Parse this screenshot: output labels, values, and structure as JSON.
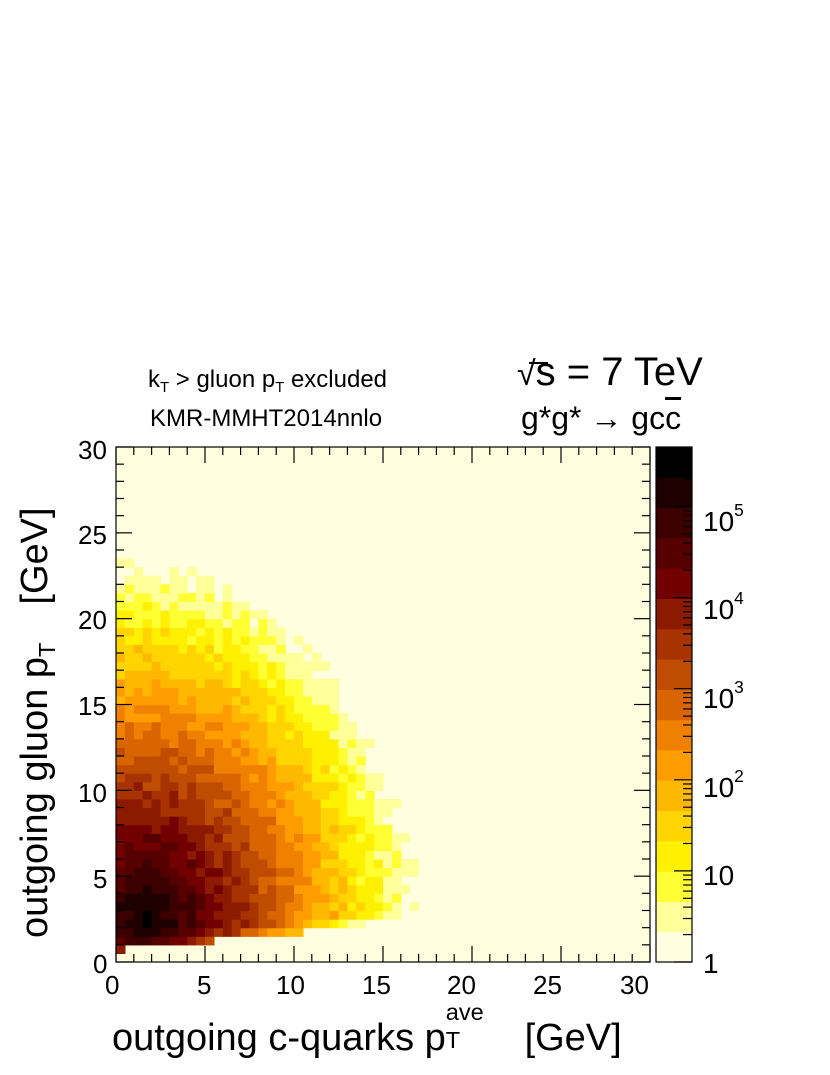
{
  "chart_data": {
    "type": "heatmap",
    "annotations": {
      "cut_k": "k",
      "cut_k_sub": "T",
      "cut_mid": " > gluon p",
      "cut_p_sub": "T",
      "cut_end": " excluded",
      "pdf": "KMR-MMHT2014nnlo",
      "energy_rad": "√",
      "energy_rest": "s = 7 TeV",
      "process_main": "g*g* → gc",
      "process_bar": "c"
    },
    "xlabel_main": "outgoing c-quarks p",
    "xlabel_sub": "T",
    "xlabel_sup": "ave",
    "xlabel_unit": "[GeV]",
    "ylabel_main": "outgoing gluon p",
    "ylabel_sub": "T",
    "ylabel_unit": "[GeV]",
    "xlim": [
      0,
      30
    ],
    "ylim": [
      0,
      30
    ],
    "x_ticks": [
      "0",
      "5",
      "10",
      "15",
      "20",
      "25",
      "30"
    ],
    "y_ticks": [
      "0",
      "5",
      "10",
      "15",
      "20",
      "25",
      "30"
    ],
    "z_scale": "log",
    "zlim": [
      1,
      450000
    ],
    "z_ticks": [
      {
        "base": "1",
        "exp": ""
      },
      {
        "base": "10",
        "exp": ""
      },
      {
        "base": "10",
        "exp": "2"
      },
      {
        "base": "10",
        "exp": "3"
      },
      {
        "base": "10",
        "exp": "4"
      },
      {
        "base": "10",
        "exp": "5"
      }
    ],
    "peak": {
      "x": 1.8,
      "y": 2.4,
      "z": 450000
    },
    "kinematic_edge": "y ≈ 0.1·x + 0.7",
    "colormap": [
      "#ffffe0",
      "#ffff9a",
      "#ffff33",
      "#fff000",
      "#ffd400",
      "#ffb800",
      "#ff9c00",
      "#f08000",
      "#d86500",
      "#bf4c00",
      "#a63300",
      "#8c1a00",
      "#720000",
      "#560000",
      "#3c0000",
      "#1f0000",
      "#000000"
    ],
    "grid": false
  }
}
